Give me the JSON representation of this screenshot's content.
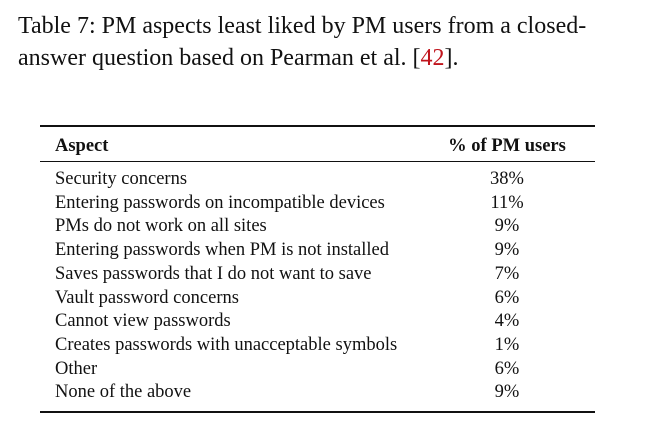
{
  "caption": {
    "text": "Table 7: PM aspects least liked by PM users from a closed-answer question based on Pearman et al. [",
    "citation": "42",
    "end": "]."
  },
  "table": {
    "headers": {
      "aspect": "Aspect",
      "percent": "% of PM users"
    },
    "rows": [
      {
        "aspect": "Security concerns",
        "percent": "38%"
      },
      {
        "aspect": "Entering passwords on incompatible devices",
        "percent": "11%"
      },
      {
        "aspect": "PMs do not work on all sites",
        "percent": "9%"
      },
      {
        "aspect": "Entering passwords when PM is not installed",
        "percent": "9%"
      },
      {
        "aspect": "Saves passwords that I do not want to save",
        "percent": "7%"
      },
      {
        "aspect": "Vault password concerns",
        "percent": "6%"
      },
      {
        "aspect": "Cannot view passwords",
        "percent": "4%"
      },
      {
        "aspect": "Creates passwords with unacceptable symbols",
        "percent": "1%"
      },
      {
        "aspect": "Other",
        "percent": "6%"
      },
      {
        "aspect": "None of the above",
        "percent": "9%"
      }
    ]
  },
  "colors": {
    "citation_link": "#c0141c",
    "text": "#111111"
  }
}
